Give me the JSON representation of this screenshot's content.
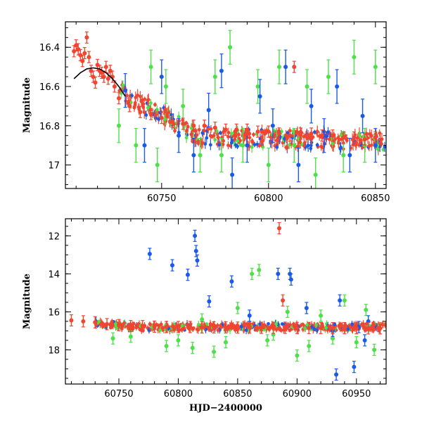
{
  "chart_data": [
    {
      "type": "scatter",
      "xlim": [
        60705,
        60855
      ],
      "ylim": [
        17.12,
        16.27
      ],
      "y_inverted": true,
      "xticks": [
        "60750",
        "60800",
        "60850"
      ],
      "xtick_values": [
        60750,
        60800,
        60850
      ],
      "yticks": [
        "16.4",
        "16.6",
        "16.8",
        "17"
      ],
      "ytick_values": [
        16.4,
        16.6,
        16.8,
        17.0
      ],
      "xlabel": "",
      "ylabel": "Magnitude",
      "colors": {
        "red": "#f04530",
        "green": "#4ee04a",
        "blue": "#1a5ae8",
        "curve": "#000000"
      },
      "model_curve": {
        "x": [
          60709,
          60712,
          60715,
          60718,
          60721,
          60724,
          60727,
          60730,
          60733
        ],
        "y": [
          16.56,
          16.53,
          16.51,
          16.505,
          16.51,
          16.53,
          16.56,
          16.6,
          16.65
        ]
      },
      "series": [
        {
          "name": "red",
          "x": [
            60709,
            60710,
            60711,
            60712,
            60713,
            60714,
            60715,
            60716,
            60717,
            60718,
            60719,
            60720,
            60721,
            60722,
            60723,
            60724,
            60725,
            60726,
            60727,
            60728,
            60730,
            60735,
            60740,
            60745,
            60750,
            60755,
            60760,
            60765,
            60770,
            60775,
            60780,
            60785,
            60790,
            60795,
            60800,
            60805,
            60810,
            60812,
            60815,
            60820,
            60825,
            60830,
            60835,
            60840,
            60845,
            60850
          ],
          "y": [
            16.42,
            16.39,
            16.41,
            16.44,
            16.47,
            16.43,
            16.35,
            16.45,
            16.52,
            16.55,
            16.58,
            16.49,
            16.52,
            16.53,
            16.55,
            16.5,
            16.56,
            16.52,
            16.55,
            16.6,
            16.66,
            16.7,
            16.73,
            16.74,
            16.76,
            16.78,
            16.79,
            16.8,
            16.8,
            16.81,
            16.82,
            16.82,
            16.82,
            16.83,
            16.83,
            16.84,
            16.85,
            16.5,
            16.84,
            16.84,
            16.85,
            16.85,
            16.86,
            16.86,
            16.87,
            16.86
          ]
        },
        {
          "name": "green",
          "x": [
            60730,
            60738,
            60745,
            60748,
            60752,
            60760,
            60768,
            60775,
            60778,
            60782,
            60788,
            60795,
            60800,
            60805,
            60812,
            60818,
            60822,
            60828,
            60835,
            60840,
            60845,
            60850
          ],
          "y": [
            16.8,
            16.9,
            16.5,
            17.0,
            16.6,
            16.7,
            16.95,
            16.55,
            16.95,
            16.4,
            16.9,
            16.6,
            17.0,
            16.5,
            16.9,
            16.6,
            17.05,
            16.55,
            16.95,
            16.45,
            16.9,
            16.5
          ]
        },
        {
          "name": "blue",
          "x": [
            60733,
            60742,
            60750,
            60758,
            60765,
            60772,
            60778,
            60783,
            60790,
            60796,
            60802,
            60808,
            60814,
            60820,
            60826,
            60832,
            60838,
            60844,
            60850
          ],
          "y": [
            16.62,
            16.9,
            16.55,
            16.85,
            16.95,
            16.72,
            16.52,
            17.05,
            16.9,
            16.65,
            16.8,
            16.5,
            17.0,
            16.7,
            16.85,
            16.6,
            16.95,
            16.75,
            16.9
          ]
        }
      ]
    },
    {
      "type": "scatter",
      "xlim": [
        60705,
        60975
      ],
      "ylim": [
        19.8,
        11.1
      ],
      "y_inverted": true,
      "xticks": [
        "60750",
        "60800",
        "60850",
        "60900",
        "60950"
      ],
      "xtick_values": [
        60750,
        60800,
        60850,
        60900,
        60950
      ],
      "yticks": [
        "12",
        "14",
        "16",
        "18"
      ],
      "ytick_values": [
        12,
        14,
        16,
        18
      ],
      "xlabel": "HJD−2400000",
      "ylabel": "Magnitude",
      "series": [
        {
          "name": "red",
          "x": [
            60710,
            60720,
            60730,
            60740,
            60750,
            60760,
            60770,
            60780,
            60790,
            60800,
            60810,
            60820,
            60830,
            60840,
            60850,
            60860,
            60870,
            60880,
            60885,
            60888,
            60890,
            60900,
            60910,
            60920,
            60930,
            60940,
            60950,
            60960,
            60970
          ],
          "y": [
            16.45,
            16.5,
            16.55,
            16.65,
            16.7,
            16.75,
            16.75,
            16.78,
            16.8,
            16.8,
            16.8,
            16.82,
            16.82,
            16.82,
            16.83,
            16.83,
            16.84,
            16.84,
            11.6,
            15.4,
            16.84,
            16.85,
            16.85,
            16.85,
            16.86,
            16.86,
            16.86,
            16.87,
            16.87
          ]
        },
        {
          "name": "green",
          "x": [
            60745,
            60760,
            60790,
            60800,
            60812,
            60820,
            60830,
            60840,
            60850,
            60862,
            60868,
            60875,
            60880,
            60892,
            60900,
            60910,
            60920,
            60930,
            60940,
            60950,
            60958,
            60965
          ],
          "y": [
            17.4,
            17.3,
            17.8,
            17.5,
            17.9,
            16.4,
            18.1,
            17.6,
            15.8,
            14.0,
            13.8,
            17.5,
            17.2,
            16.0,
            18.3,
            17.8,
            16.2,
            17.4,
            15.4,
            17.6,
            15.9,
            18.0
          ]
        },
        {
          "name": "blue",
          "x": [
            60776,
            60795,
            60808,
            60814,
            60815,
            60816,
            60826,
            60845,
            60860,
            60884,
            60894,
            60895,
            60908,
            60930,
            60933,
            60936,
            60948,
            60952,
            60957,
            60960
          ],
          "y": [
            12.95,
            13.55,
            14.05,
            12.0,
            12.8,
            13.3,
            15.45,
            14.4,
            16.2,
            14.0,
            14.0,
            14.3,
            15.8,
            17.0,
            19.3,
            15.4,
            18.9,
            16.8,
            17.5,
            16.5
          ]
        }
      ]
    }
  ]
}
